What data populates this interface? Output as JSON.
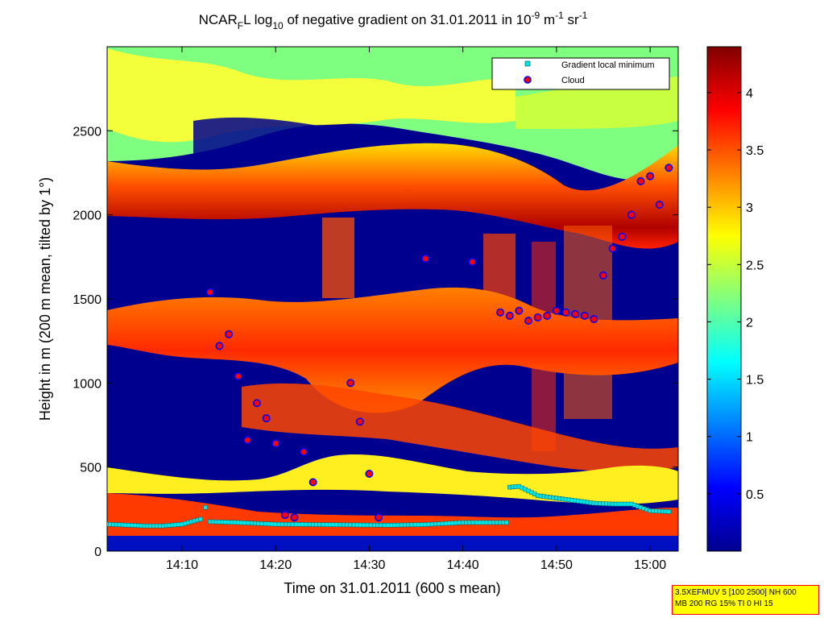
{
  "chart_data": {
    "type": "heatmap",
    "title_parts": {
      "a": "NCAR",
      "a_sub": "F",
      "b": "L log",
      "b_sub": "10",
      "c": " of negative gradient on 31.01.2011 in 10",
      "c_sup": "-9",
      "d": " m",
      "d_sup": "-1",
      "e": " sr",
      "e_sup": "-1"
    },
    "xlabel": "Time on 31.01.2011 (600 s mean)",
    "ylabel": "Height in m (200 m mean, tilted by 1°)",
    "xlim": [
      "14:02",
      "15:03"
    ],
    "ylim": [
      0,
      3000
    ],
    "x_ticks": [
      "14:10",
      "14:20",
      "14:30",
      "14:40",
      "14:50",
      "15:00"
    ],
    "x_tick_minutes": [
      10,
      20,
      30,
      40,
      50,
      60
    ],
    "y_ticks": [
      0,
      500,
      1000,
      1500,
      2000,
      2500
    ],
    "colorbar": {
      "range": [
        0,
        4.4
      ],
      "ticks": [
        "0.5",
        "1",
        "1.5",
        "2",
        "2.5",
        "3",
        "3.5",
        "4"
      ],
      "tick_values": [
        0.5,
        1,
        1.5,
        2,
        2.5,
        3,
        3.5,
        4
      ],
      "colormap": "jet"
    },
    "legend": {
      "position": "top-right",
      "entries": [
        {
          "label": "Gradient local minimum",
          "marker": "square",
          "color": "#00e5e5"
        },
        {
          "label": "Cloud",
          "marker": "circle",
          "color": "#ff0000",
          "edge": "#0000ff"
        }
      ]
    },
    "series": [
      {
        "name": "Gradient local minimum",
        "x_minutes": [
          2,
          4,
          6,
          8,
          10,
          12,
          12.5,
          13,
          16,
          20,
          24,
          28,
          32,
          36,
          40,
          44,
          45,
          46,
          48,
          50,
          52,
          54,
          56,
          58,
          60,
          62
        ],
        "heights": [
          160,
          155,
          150,
          150,
          160,
          190,
          260,
          175,
          170,
          160,
          158,
          156,
          154,
          158,
          170,
          170,
          380,
          385,
          330,
          315,
          300,
          285,
          280,
          280,
          240,
          235
        ]
      },
      {
        "name": "Cloud",
        "x_minutes": [
          13,
          14,
          15,
          16,
          17,
          18,
          19,
          20,
          21,
          22,
          23,
          24,
          28,
          29,
          30,
          31,
          36,
          41,
          44,
          45,
          46,
          47,
          48,
          49,
          50,
          51,
          52,
          53,
          54,
          55,
          56,
          57,
          58,
          59,
          60,
          61,
          62
        ],
        "heights": [
          1540,
          1220,
          1290,
          1040,
          660,
          880,
          790,
          640,
          215,
          200,
          590,
          410,
          1000,
          770,
          460,
          200,
          1740,
          1720,
          1420,
          1400,
          1430,
          1370,
          1390,
          1400,
          1430,
          1420,
          1410,
          1400,
          1380,
          1640,
          1800,
          1870,
          2000,
          2200,
          2230,
          2060,
          2280
        ]
      }
    ]
  },
  "info_box": {
    "line1": "3.5XEFMUV 5 [100 2500] NH 600",
    "line2": "MB 200 RG 15% TI 0 HI 15"
  }
}
